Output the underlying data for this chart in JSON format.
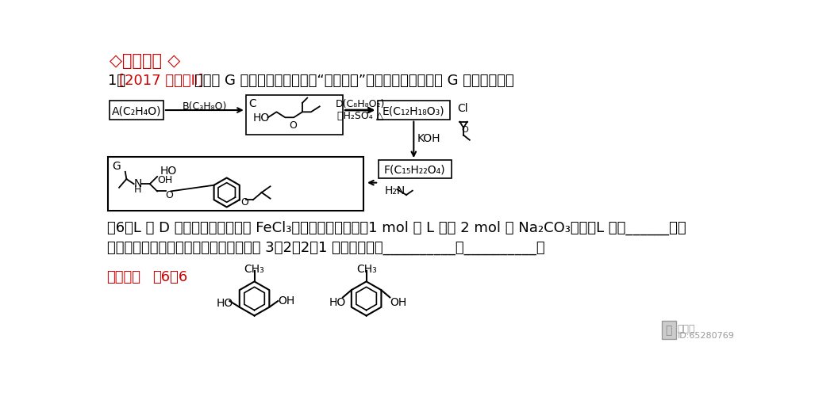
{
  "bg_color": "#ffffff",
  "title": "◇高考真题 ◇",
  "title_color": "#cc0000",
  "red_color": "#cc0000",
  "black": "#000000",
  "gray": "#aaaaaa",
  "q6_line1": "(）6）L 是 D 的同分异构体，可与 FeCl₃溶液发生显色反应，1 mol 的 L 可与 2 mol 的 Na₂CO₃反应，L 共有______种；",
  "q6_line2": "其中核磁共振氢谱为四组峰，峰面积比为 3：2：2：1 的结构简式为__________、__________。",
  "answer_label": "【答案】",
  "answer_content": "（6）6",
  "watermark1": "黄河清",
  "watermark2": "ID:65280769"
}
